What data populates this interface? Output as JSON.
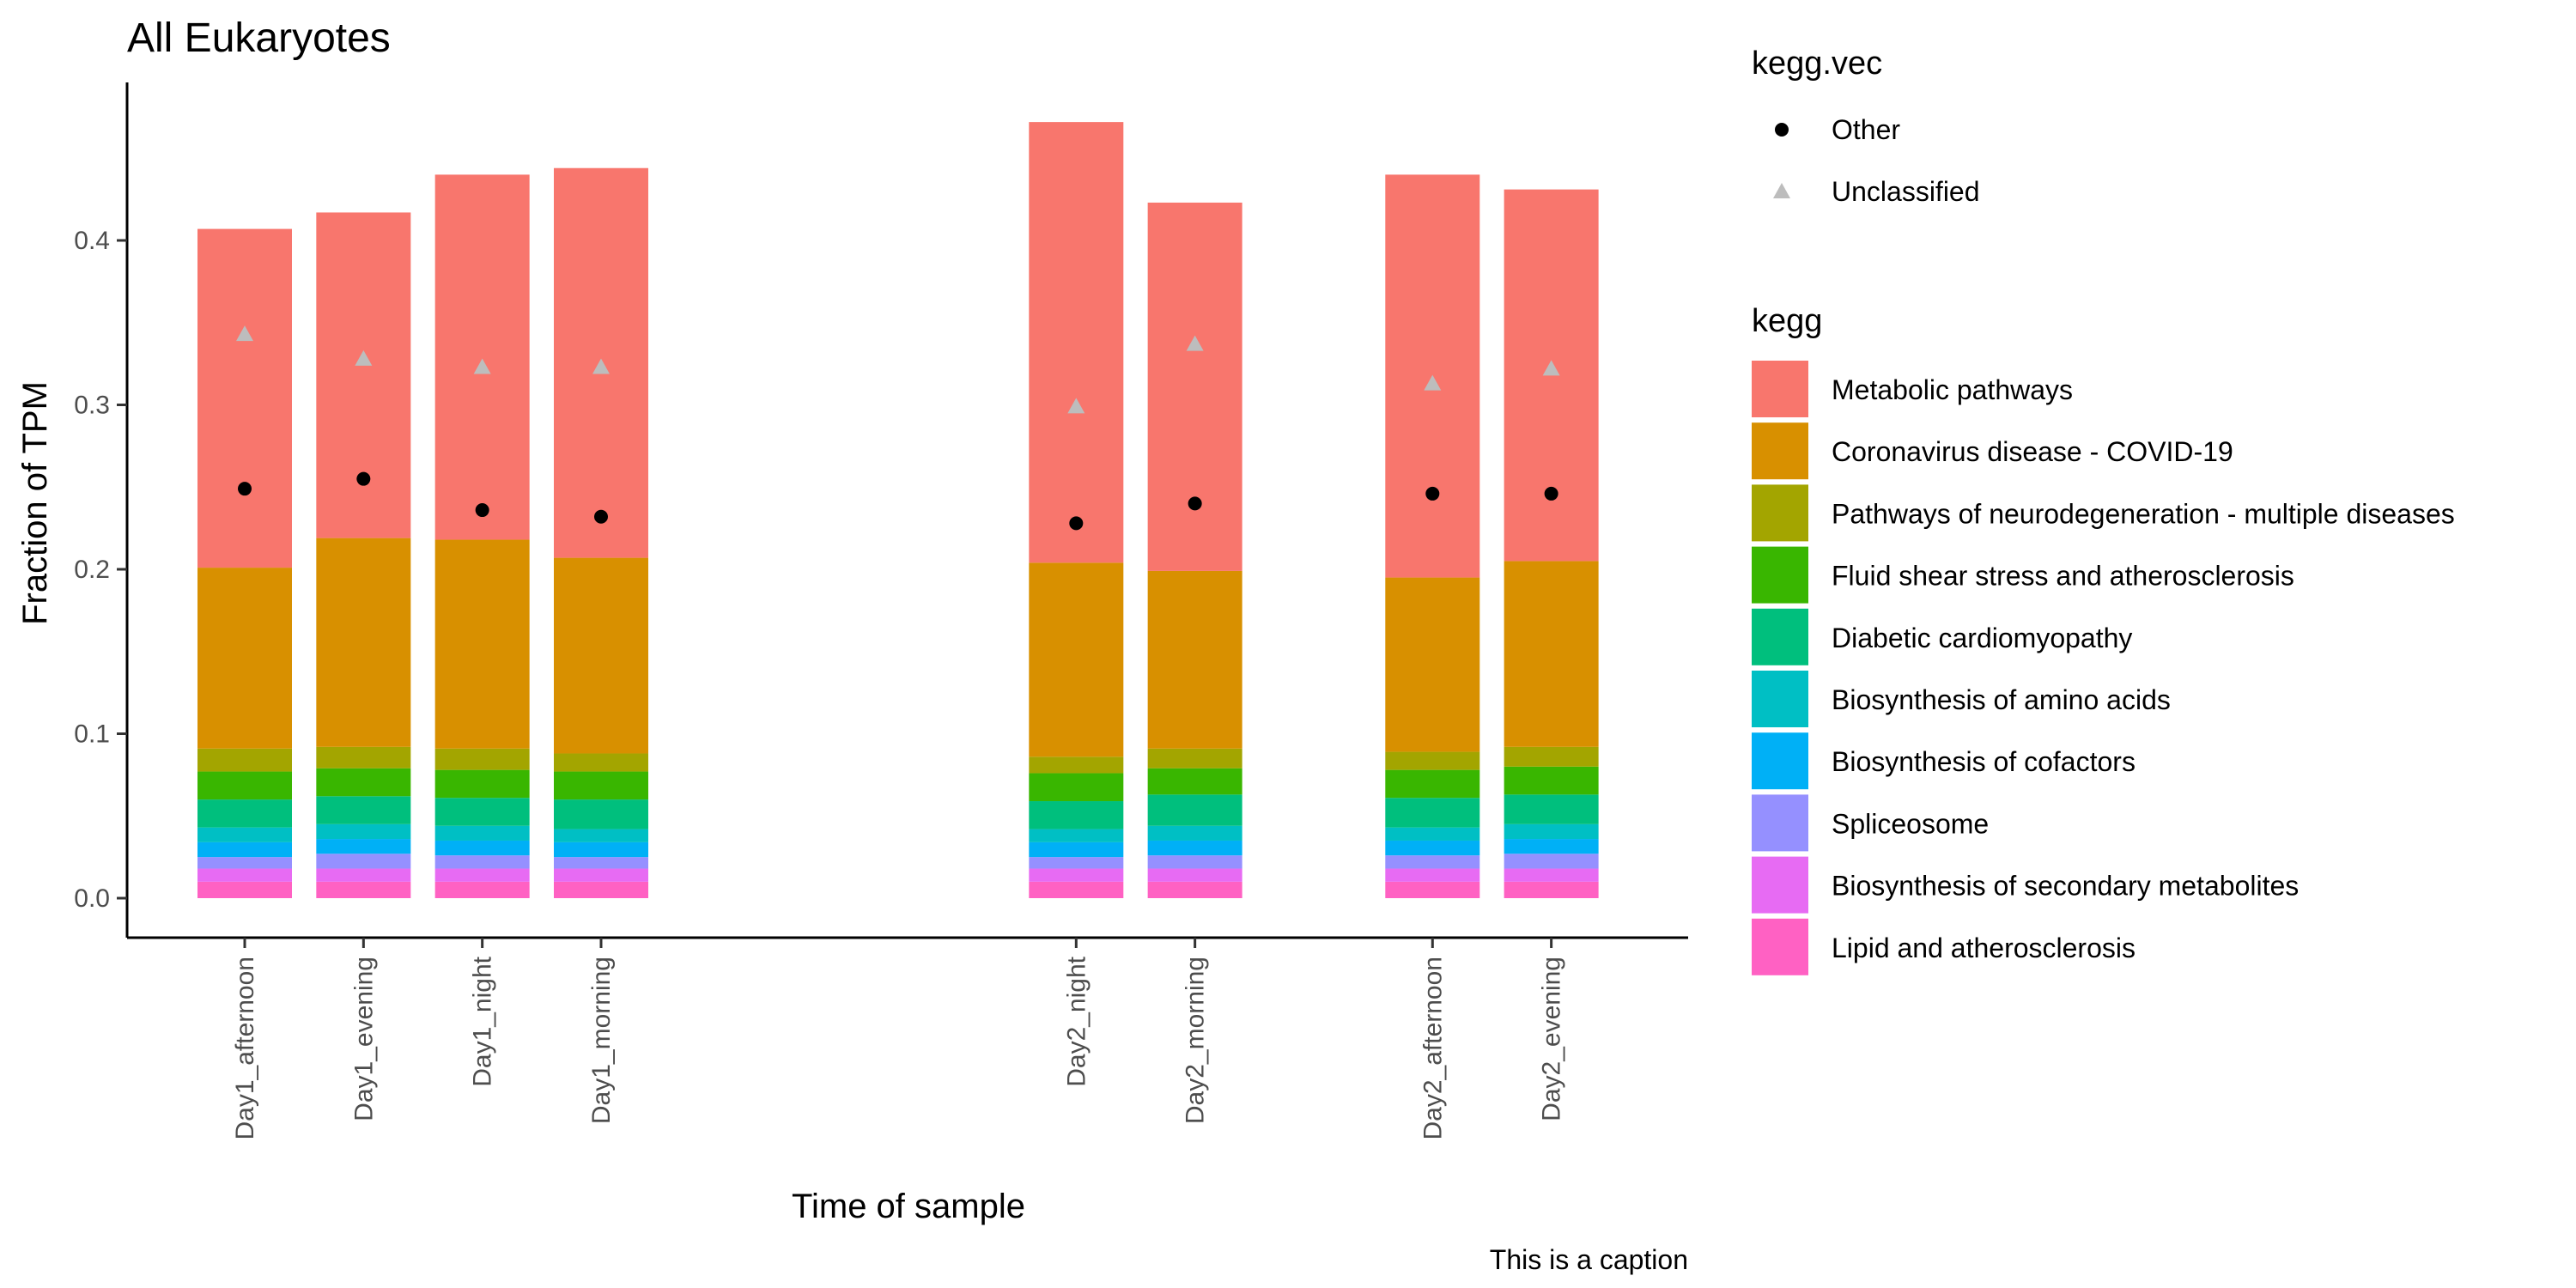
{
  "chart_data": {
    "type": "bar",
    "stacked": true,
    "title": "All Eukaryotes",
    "xlabel": "Time of sample",
    "ylabel": "Fraction of TPM",
    "caption": "This is a caption",
    "ylim": [
      0,
      0.48
    ],
    "yticks": [
      0.0,
      0.1,
      0.2,
      0.3,
      0.4
    ],
    "ytick_labels": [
      "0.0",
      "0.1",
      "0.2",
      "0.3",
      "0.4"
    ],
    "grid": false,
    "legend_placement": "right",
    "x_positions": [
      1,
      2,
      3,
      4,
      8,
      9,
      11,
      12
    ],
    "categories": [
      "Day1_afternoon",
      "Day1_evening",
      "Day1_night",
      "Day1_morning",
      "Day2_night",
      "Day2_morning",
      "Day2_afternoon",
      "Day2_evening"
    ],
    "fill_legend_title": "kegg",
    "series": [
      {
        "name": "Lipid and atherosclerosis",
        "color": "#FF61C3",
        "values": [
          0.01,
          0.01,
          0.01,
          0.01,
          0.01,
          0.01,
          0.01,
          0.01
        ]
      },
      {
        "name": "Biosynthesis of secondary metabolites",
        "color": "#E76BF3",
        "values": [
          0.008,
          0.008,
          0.008,
          0.008,
          0.008,
          0.008,
          0.008,
          0.008
        ]
      },
      {
        "name": "Spliceosome",
        "color": "#9590FF",
        "values": [
          0.007,
          0.009,
          0.008,
          0.007,
          0.007,
          0.008,
          0.008,
          0.009
        ]
      },
      {
        "name": "Biosynthesis of cofactors",
        "color": "#00B0F6",
        "values": [
          0.009,
          0.009,
          0.009,
          0.009,
          0.009,
          0.009,
          0.009,
          0.009
        ]
      },
      {
        "name": "Biosynthesis of amino acids",
        "color": "#00BFC4",
        "values": [
          0.009,
          0.009,
          0.009,
          0.008,
          0.008,
          0.009,
          0.008,
          0.009
        ]
      },
      {
        "name": "Diabetic cardiomyopathy",
        "color": "#00BF7D",
        "values": [
          0.017,
          0.017,
          0.017,
          0.018,
          0.017,
          0.019,
          0.018,
          0.018
        ]
      },
      {
        "name": "Fluid shear stress and atherosclerosis",
        "color": "#39B600",
        "values": [
          0.017,
          0.017,
          0.017,
          0.017,
          0.017,
          0.016,
          0.017,
          0.017
        ]
      },
      {
        "name": "Pathways of neurodegeneration - multiple diseases",
        "color": "#A3A500",
        "values": [
          0.014,
          0.013,
          0.013,
          0.011,
          0.01,
          0.012,
          0.011,
          0.012
        ]
      },
      {
        "name": "Coronavirus disease - COVID-19",
        "color": "#D89000",
        "values": [
          0.11,
          0.127,
          0.127,
          0.119,
          0.118,
          0.108,
          0.106,
          0.113
        ]
      },
      {
        "name": "Metabolic pathways",
        "color": "#F8766D",
        "values": [
          0.206,
          0.198,
          0.222,
          0.237,
          0.268,
          0.224,
          0.245,
          0.226
        ]
      }
    ],
    "point_legend_title": "kegg.vec",
    "point_series": [
      {
        "name": "Other",
        "shape": "circle",
        "color": "#000000",
        "values": [
          0.249,
          0.255,
          0.236,
          0.232,
          0.228,
          0.24,
          0.246,
          0.246
        ]
      },
      {
        "name": "Unclassified",
        "shape": "triangle",
        "color": "#BDBDBD",
        "values": [
          0.343,
          0.328,
          0.323,
          0.323,
          0.299,
          0.337,
          0.313,
          0.322
        ]
      }
    ]
  }
}
